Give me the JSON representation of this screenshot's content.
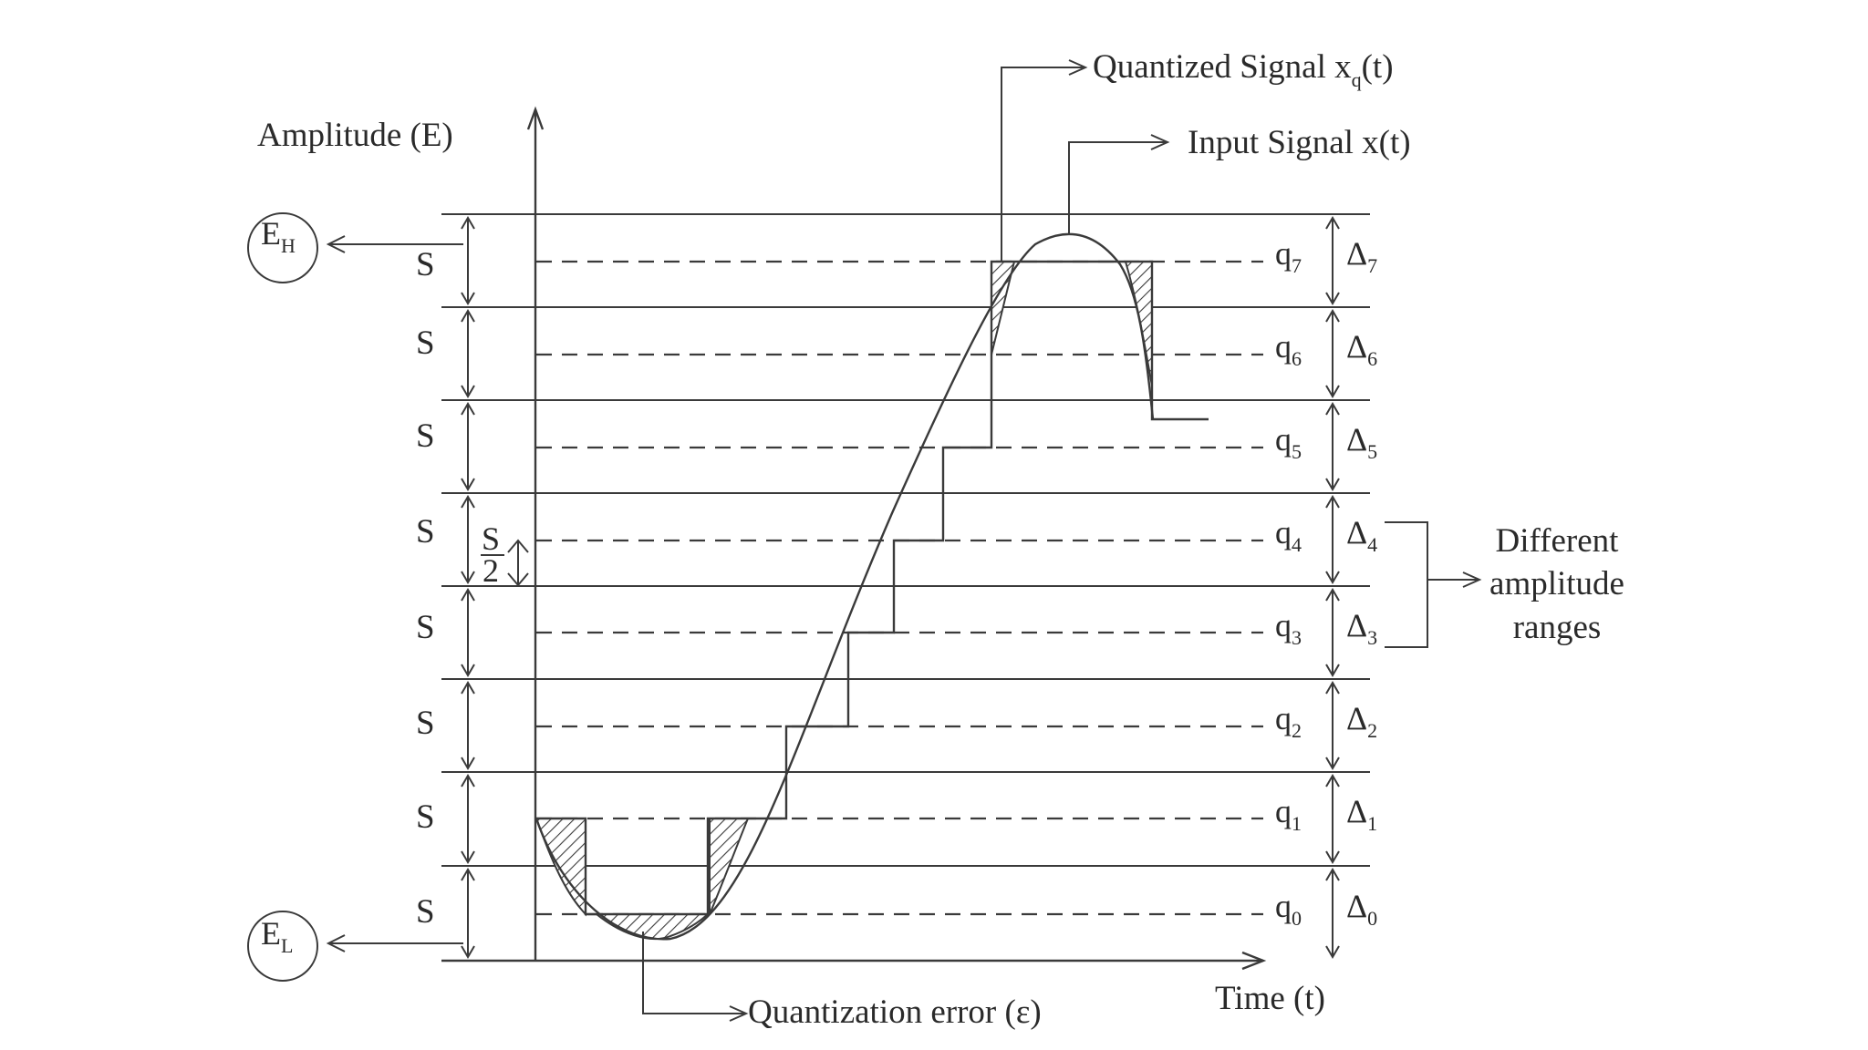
{
  "axis": {
    "y_label": "Amplitude (E)",
    "x_label": "Time (t)"
  },
  "limits": {
    "high": {
      "main": "E",
      "sub": "H"
    },
    "low": {
      "main": "E",
      "sub": "L"
    }
  },
  "step_label": "S",
  "half_step": {
    "numerator": "S",
    "denominator": "2"
  },
  "levels": [
    {
      "q": "q",
      "q_sub": "7",
      "delta": "Δ",
      "delta_sub": "7"
    },
    {
      "q": "q",
      "q_sub": "6",
      "delta": "Δ",
      "delta_sub": "6"
    },
    {
      "q": "q",
      "q_sub": "5",
      "delta": "Δ",
      "delta_sub": "5"
    },
    {
      "q": "q",
      "q_sub": "4",
      "delta": "Δ",
      "delta_sub": "4"
    },
    {
      "q": "q",
      "q_sub": "3",
      "delta": "Δ",
      "delta_sub": "3"
    },
    {
      "q": "q",
      "q_sub": "2",
      "delta": "Δ",
      "delta_sub": "2"
    },
    {
      "q": "q",
      "q_sub": "1",
      "delta": "Δ",
      "delta_sub": "1"
    },
    {
      "q": "q",
      "q_sub": "0",
      "delta": "Δ",
      "delta_sub": "0"
    }
  ],
  "annotations": {
    "quantized": {
      "text": "Quantized Signal x",
      "sub": "q",
      "tail": "(t)"
    },
    "input": "Input Signal x(t)",
    "error": "Quantization error (ε)",
    "ranges": [
      "Different",
      "amplitude",
      "ranges"
    ]
  }
}
